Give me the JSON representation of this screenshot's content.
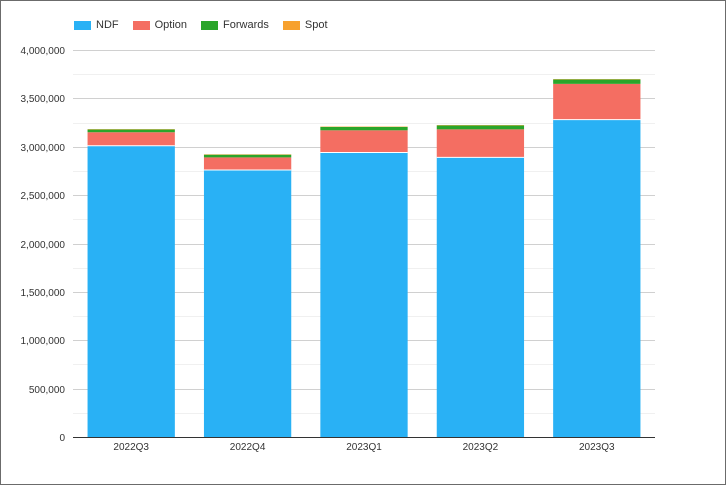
{
  "chart_data": {
    "type": "bar",
    "stacked": true,
    "categories": [
      "2022Q3",
      "2022Q4",
      "2023Q1",
      "2023Q2",
      "2023Q3"
    ],
    "series": [
      {
        "name": "NDF",
        "color": "#29b1f5",
        "values": [
          3010000,
          2760000,
          2940000,
          2890000,
          3280000
        ]
      },
      {
        "name": "Option",
        "color": "#f46e62",
        "values": [
          140000,
          130000,
          230000,
          290000,
          370000
        ]
      },
      {
        "name": "Forwards",
        "color": "#2aa52a",
        "values": [
          28000,
          28000,
          35000,
          40000,
          45000
        ]
      },
      {
        "name": "Spot",
        "color": "#f7a12e",
        "values": [
          4000,
          4000,
          4000,
          4000,
          4000
        ]
      }
    ],
    "yticks": [
      "0",
      "500,000",
      "1,000,000",
      "1,500,000",
      "2,000,000",
      "2,500,000",
      "3,000,000",
      "3,500,000",
      "4,000,000"
    ],
    "ylim": [
      0,
      4000000
    ],
    "grid": true,
    "legend_position": "top-left"
  }
}
